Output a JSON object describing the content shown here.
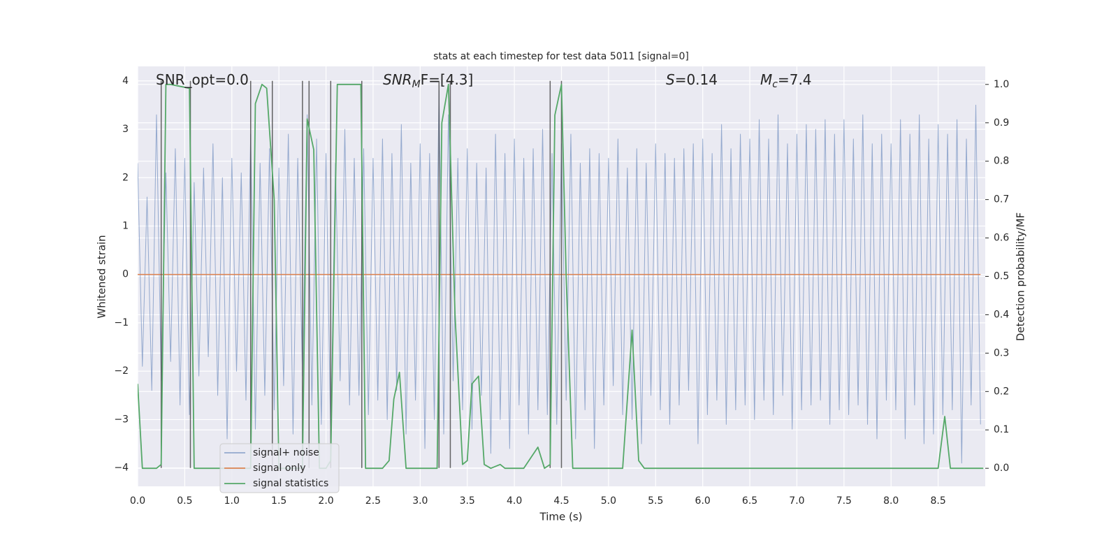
{
  "chart_data": {
    "type": "line",
    "title": "stats at each timestep for test data 5011 [signal=0]",
    "x_label": "Time (s)",
    "y_label": "Whitened strain",
    "y2_label": "Detection probability/MF",
    "xlim": [
      0,
      9.0
    ],
    "ylim": [
      -4.38,
      4.3
    ],
    "y2lim": [
      -0.047,
      1.047
    ],
    "xticks": [
      {
        "value": 0,
        "label": "0.0"
      },
      0.5,
      {
        "value": 1,
        "label": "1.0"
      },
      1.5,
      {
        "value": 2,
        "label": "2.0"
      },
      2.5,
      {
        "value": 3,
        "label": "3.0"
      },
      3.5,
      {
        "value": 4,
        "label": "4.0"
      },
      4.5,
      {
        "value": 5,
        "label": "5.0"
      },
      5.5,
      {
        "value": 6,
        "label": "6.0"
      },
      6.5,
      {
        "value": 7,
        "label": "7.0"
      },
      7.5,
      {
        "value": 8,
        "label": "8.0"
      },
      8.5
    ],
    "yticks": [
      {
        "value": -4,
        "label": "−4"
      },
      {
        "value": -3,
        "label": "−3"
      },
      {
        "value": -2,
        "label": "−2"
      },
      {
        "value": -1,
        "label": "−1"
      },
      0,
      1,
      2,
      3,
      4
    ],
    "y2ticks": [
      {
        "value": 0,
        "label": "0.0"
      },
      0.1,
      0.2,
      0.3,
      0.4,
      0.5,
      0.6,
      0.7,
      0.8,
      0.9,
      {
        "value": 1,
        "label": "1.0"
      }
    ],
    "grid": true,
    "legend": "lower left",
    "annotations": [
      [
        {
          "text": "SNR_opt=0.0"
        }
      ],
      [
        {
          "text": "SNR",
          "italic": true
        },
        {
          "text": "M",
          "italic": true,
          "sub": true
        },
        {
          "text": "F=[4.3]"
        }
      ],
      [
        {
          "text": "S",
          "italic": true
        },
        {
          "text": "=0.14"
        }
      ],
      [
        {
          "text": "M",
          "italic": true
        },
        {
          "text": "c",
          "italic": true,
          "sub": true
        },
        {
          "text": "=7.4"
        }
      ]
    ],
    "vlines": {
      "color": "#4a4a4a",
      "ymin": -4,
      "ymax": 4,
      "x": [
        0.25,
        0.56,
        1.2,
        1.43,
        1.75,
        1.82,
        2.05,
        2.38,
        3.2,
        3.32,
        4.38,
        4.5
      ]
    },
    "series": [
      {
        "name": "signal+ noise",
        "color": "#4c72b0",
        "x": [
          0,
          0.05,
          0.1,
          0.15,
          0.2,
          0.25,
          0.3,
          0.35,
          0.4,
          0.45,
          0.5,
          0.55,
          0.6,
          0.65,
          0.7,
          0.75,
          0.8,
          0.85,
          0.9,
          0.95,
          1,
          1.05,
          1.1,
          1.15,
          1.2,
          1.25,
          1.3,
          1.35,
          1.4,
          1.45,
          1.5,
          1.55,
          1.6,
          1.65,
          1.7,
          1.75,
          1.8,
          1.85,
          1.9,
          1.95,
          2,
          2.05,
          2.1,
          2.15,
          2.2,
          2.25,
          2.3,
          2.35,
          2.4,
          2.45,
          2.5,
          2.55,
          2.6,
          2.65,
          2.7,
          2.75,
          2.8,
          2.85,
          2.9,
          2.95,
          3,
          3.05,
          3.1,
          3.15,
          3.2,
          3.25,
          3.3,
          3.35,
          3.4,
          3.45,
          3.5,
          3.55,
          3.6,
          3.65,
          3.7,
          3.75,
          3.8,
          3.85,
          3.9,
          3.95,
          4,
          4.05,
          4.1,
          4.15,
          4.2,
          4.25,
          4.3,
          4.35,
          4.4,
          4.45,
          4.5,
          4.55,
          4.6,
          4.65,
          4.7,
          4.75,
          4.8,
          4.85,
          4.9,
          4.95,
          5,
          5.05,
          5.1,
          5.15,
          5.2,
          5.25,
          5.3,
          5.35,
          5.4,
          5.45,
          5.5,
          5.55,
          5.6,
          5.65,
          5.7,
          5.75,
          5.8,
          5.85,
          5.9,
          5.95,
          6,
          6.05,
          6.1,
          6.15,
          6.2,
          6.25,
          6.3,
          6.35,
          6.4,
          6.45,
          6.5,
          6.55,
          6.6,
          6.65,
          6.7,
          6.75,
          6.8,
          6.85,
          6.9,
          6.95,
          7,
          7.05,
          7.1,
          7.15,
          7.2,
          7.25,
          7.3,
          7.35,
          7.4,
          7.45,
          7.5,
          7.55,
          7.6,
          7.65,
          7.7,
          7.75,
          7.8,
          7.85,
          7.9,
          7.95,
          8,
          8.05,
          8.1,
          8.15,
          8.2,
          8.25,
          8.3,
          8.35,
          8.4,
          8.45,
          8.5,
          8.55,
          8.6,
          8.65,
          8.7,
          8.75,
          8.8,
          8.85,
          8.9,
          8.95
        ],
        "values": [
          2.3,
          -1.9,
          1.6,
          -2.4,
          3.3,
          -2.2,
          2.1,
          -1.8,
          2.6,
          -2.7,
          2.4,
          -2.9,
          1.9,
          -2.1,
          2.2,
          -1.7,
          2.7,
          -2.5,
          2.0,
          -3.4,
          2.4,
          -2.0,
          2.1,
          -2.6,
          2.9,
          -3.2,
          2.3,
          -2.5,
          2.6,
          -2.8,
          2.2,
          -2.3,
          2.9,
          -3.3,
          2.4,
          -2.1,
          3.3,
          -2.7,
          2.8,
          -3.1,
          2.5,
          -3.4,
          2.3,
          -2.2,
          3.0,
          -2.7,
          2.4,
          -2.5,
          2.6,
          -2.9,
          2.4,
          -2.6,
          2.8,
          -3.0,
          2.5,
          -2.4,
          3.1,
          -3.3,
          2.3,
          -2.6,
          2.7,
          -3.6,
          2.5,
          -3.0,
          3.8,
          -3.3,
          3.3,
          -2.2,
          2.4,
          -2.8,
          2.6,
          -3.2,
          2.3,
          -2.5,
          2.2,
          -3.7,
          2.9,
          -3.0,
          2.5,
          -3.6,
          2.8,
          -2.7,
          2.4,
          -3.3,
          2.6,
          -2.8,
          3.0,
          -2.9,
          2.5,
          -3.1,
          2.7,
          -2.6,
          2.9,
          -3.4,
          2.3,
          -2.8,
          2.6,
          -3.6,
          2.5,
          -2.7,
          2.4,
          -2.3,
          2.8,
          -2.9,
          2.2,
          -3.0,
          2.6,
          -3.5,
          2.3,
          -2.5,
          2.7,
          -2.8,
          2.5,
          -3.1,
          2.4,
          -2.7,
          2.6,
          -2.4,
          2.7,
          -3.5,
          2.8,
          -2.9,
          2.5,
          -2.6,
          3.1,
          -3.1,
          2.6,
          -2.8,
          2.9,
          -2.7,
          2.8,
          -3.0,
          3.2,
          -2.6,
          2.8,
          -2.9,
          3.3,
          -2.5,
          2.7,
          -3.2,
          2.9,
          -2.8,
          3.1,
          -2.7,
          3.0,
          -2.6,
          3.2,
          -3.1,
          2.9,
          -2.8,
          3.2,
          -2.9,
          2.8,
          -2.7,
          3.3,
          -3.1,
          2.7,
          -3.4,
          2.9,
          -2.6,
          2.7,
          -2.8,
          3.2,
          -3.4,
          2.9,
          -2.7,
          3.3,
          -3.5,
          2.8,
          -3.3,
          3.1,
          -2.9,
          2.9,
          -2.8,
          3.2,
          -3.9,
          2.8,
          -2.7,
          3.5,
          -3.1
        ]
      },
      {
        "name": "signal only",
        "color": "#dd8452",
        "x": [
          0,
          8.95
        ],
        "values": [
          0,
          0
        ]
      },
      {
        "name": "signal statistics",
        "color": "#55a868",
        "axis": "y2",
        "x": [
          0,
          0.05,
          0.2,
          0.25,
          0.3,
          0.35,
          0.55,
          0.6,
          1.15,
          1.2,
          1.25,
          1.32,
          1.37,
          1.45,
          1.5,
          1.7,
          1.75,
          1.8,
          1.87,
          1.93,
          2.0,
          2.05,
          2.12,
          2.2,
          2.37,
          2.42,
          2.5,
          2.6,
          2.67,
          2.72,
          2.78,
          2.85,
          3.0,
          3.18,
          3.23,
          3.3,
          3.37,
          3.45,
          3.5,
          3.55,
          3.62,
          3.68,
          3.75,
          3.85,
          3.9,
          4.1,
          4.25,
          4.32,
          4.38,
          4.43,
          4.5,
          4.55,
          4.62,
          5.15,
          5.25,
          5.32,
          5.38,
          8.5,
          8.57,
          8.63,
          8.98
        ],
        "values": [
          0.22,
          0.0,
          0.0,
          0.01,
          1.0,
          1.0,
          0.99,
          0.0,
          0.0,
          0.0,
          0.95,
          1.0,
          0.99,
          0.7,
          0.0,
          0.0,
          0.0,
          0.91,
          0.83,
          0.0,
          0.0,
          0.02,
          1.0,
          1.0,
          1.0,
          0.0,
          0.0,
          0.0,
          0.02,
          0.18,
          0.25,
          0.0,
          0.0,
          0.0,
          0.9,
          1.0,
          0.4,
          0.01,
          0.02,
          0.22,
          0.24,
          0.01,
          0.0,
          0.01,
          0.0,
          0.0,
          0.055,
          0.0,
          0.01,
          0.92,
          1.0,
          0.5,
          0.0,
          0.0,
          0.36,
          0.02,
          0.0,
          0.0,
          0.135,
          0.0,
          0.0
        ]
      }
    ]
  }
}
